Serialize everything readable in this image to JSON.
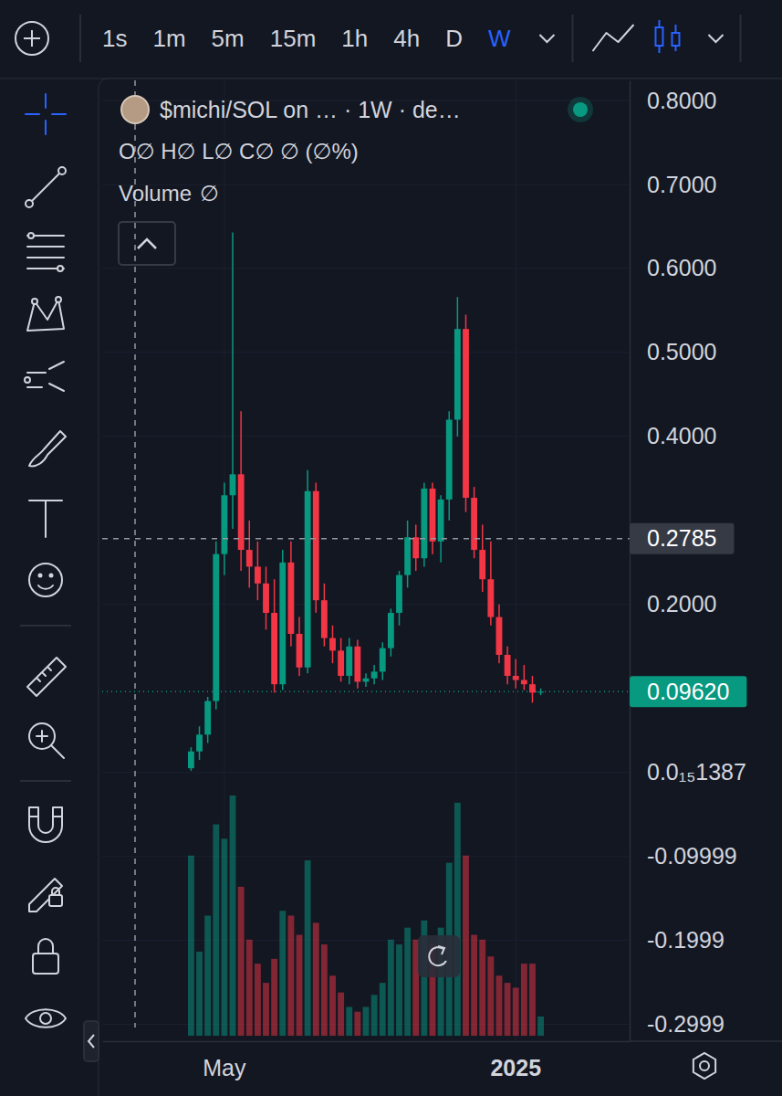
{
  "toolbar": {
    "intervals": [
      "1s",
      "1m",
      "5m",
      "15m",
      "1h",
      "4h",
      "D",
      "W"
    ],
    "active": "W"
  },
  "chart_data": {
    "type": "candlestick",
    "title": "$michi/SOL on … · 1W · de…",
    "ohlc_readout": "O∅ H∅ L∅ C∅ ∅ (∅%)",
    "categories": [
      null,
      null,
      null,
      null,
      "May",
      null,
      null,
      null,
      null,
      null,
      null,
      null,
      null,
      null,
      null,
      null,
      null,
      null,
      null,
      null,
      null,
      null,
      null,
      null,
      null,
      null,
      null,
      null,
      null,
      null,
      null,
      null,
      null,
      null,
      null,
      null,
      null,
      null,
      null,
      "2025",
      null,
      null,
      null
    ],
    "open": [
      0.005,
      0.025,
      0.045,
      0.085,
      0.26,
      0.33,
      0.355,
      0.265,
      0.245,
      0.225,
      0.19,
      0.105,
      0.25,
      0.165,
      0.125,
      0.335,
      0.205,
      0.16,
      0.145,
      0.115,
      0.15,
      0.108,
      0.112,
      0.12,
      0.148,
      0.19,
      0.235,
      0.28,
      0.255,
      0.338,
      0.275,
      0.325,
      0.42,
      0.528,
      0.327,
      0.265,
      0.23,
      0.185,
      0.14,
      0.115,
      0.11,
      0.105,
      0.095
    ],
    "high": [
      0.03,
      0.055,
      0.09,
      0.275,
      0.345,
      0.643,
      0.43,
      0.3,
      0.275,
      0.245,
      0.23,
      0.265,
      0.275,
      0.185,
      0.36,
      0.345,
      0.225,
      0.175,
      0.16,
      0.16,
      0.158,
      0.118,
      0.128,
      0.155,
      0.195,
      0.24,
      0.3,
      0.295,
      0.345,
      0.345,
      0.33,
      0.43,
      0.566,
      0.545,
      0.34,
      0.295,
      0.275,
      0.2,
      0.15,
      0.135,
      0.128,
      0.115,
      0.1
    ],
    "low": [
      0.002,
      0.015,
      0.035,
      0.075,
      0.235,
      0.29,
      0.24,
      0.22,
      0.205,
      0.17,
      0.095,
      0.098,
      0.15,
      0.115,
      0.118,
      0.19,
      0.15,
      0.13,
      0.108,
      0.105,
      0.1,
      0.102,
      0.105,
      0.11,
      0.138,
      0.175,
      0.22,
      0.24,
      0.245,
      0.26,
      0.25,
      0.3,
      0.4,
      0.31,
      0.255,
      0.215,
      0.175,
      0.13,
      0.105,
      0.1,
      0.098,
      0.083,
      0.092
    ],
    "close": [
      0.025,
      0.045,
      0.085,
      0.26,
      0.33,
      0.355,
      0.265,
      0.245,
      0.225,
      0.19,
      0.105,
      0.25,
      0.165,
      0.125,
      0.335,
      0.205,
      0.16,
      0.145,
      0.115,
      0.15,
      0.108,
      0.112,
      0.12,
      0.148,
      0.19,
      0.235,
      0.28,
      0.255,
      0.338,
      0.275,
      0.325,
      0.42,
      0.528,
      0.327,
      0.265,
      0.23,
      0.185,
      0.14,
      0.115,
      0.11,
      0.105,
      0.095,
      0.0962
    ],
    "volume": {
      "name": "Volume",
      "readout": "∅",
      "axis": "y2",
      "values": [
        75,
        35,
        50,
        88,
        82,
        100,
        62,
        40,
        30,
        22,
        32,
        52,
        50,
        42,
        73,
        47,
        38,
        25,
        18,
        12,
        10,
        12,
        17,
        22,
        40,
        38,
        45,
        40,
        48,
        38,
        45,
        72,
        97,
        75,
        42,
        40,
        33,
        25,
        22,
        20,
        30,
        30,
        8
      ]
    },
    "ylim": [
      -0.32,
      0.824
    ],
    "yticks": [
      {
        "value": 0.8,
        "label": "0.8000"
      },
      {
        "value": 0.7,
        "label": "0.7000"
      },
      {
        "value": 0.6,
        "label": "0.6000"
      },
      {
        "value": 0.5,
        "label": "0.5000"
      },
      {
        "value": 0.4,
        "label": "0.4000"
      },
      {
        "value": 0.2,
        "label": "0.2000"
      },
      {
        "value": 1.387e-16,
        "label": "0.0₁₅1387"
      },
      -0.09999,
      -0.1999,
      -0.2999
    ],
    "y2lim": [
      0,
      100
    ],
    "crosshair": {
      "y": 0.2785,
      "label": "0.2785"
    },
    "last_price": {
      "y": 0.0962,
      "label": "0.09620"
    },
    "grid": true
  }
}
